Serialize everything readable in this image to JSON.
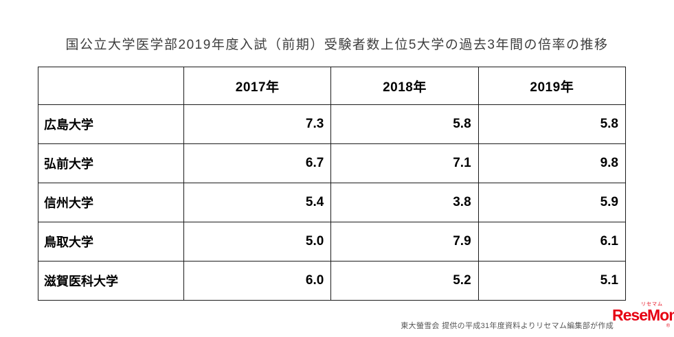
{
  "title": "国公立大学医学部2019年度入試（前期）受験者数上位5大学の過去3年間の倍率の推移",
  "chart_data": {
    "type": "table",
    "title": "国公立大学医学部2019年度入試（前期）受験者数上位5大学の過去3年間の倍率の推移",
    "columns": [
      "2017年",
      "2018年",
      "2019年"
    ],
    "rows": [
      {
        "name": "広島大学",
        "values": [
          "7.3",
          "5.8",
          "5.8"
        ]
      },
      {
        "name": "弘前大学",
        "values": [
          "6.7",
          "7.1",
          "9.8"
        ]
      },
      {
        "name": "信州大学",
        "values": [
          "5.4",
          "3.8",
          "5.9"
        ]
      },
      {
        "name": "鳥取大学",
        "values": [
          "5.0",
          "7.9",
          "6.1"
        ]
      },
      {
        "name": "滋賀医科大学",
        "values": [
          "6.0",
          "5.2",
          "5.1"
        ]
      }
    ]
  },
  "footer": {
    "credit": "東大螢雪会 提供の平成31年度資料よりリセマム編集部が作成",
    "logo_text": "ReseMom",
    "logo_sub": "リセマム",
    "logo_reg": "®",
    "logo_color": "#e60012"
  }
}
